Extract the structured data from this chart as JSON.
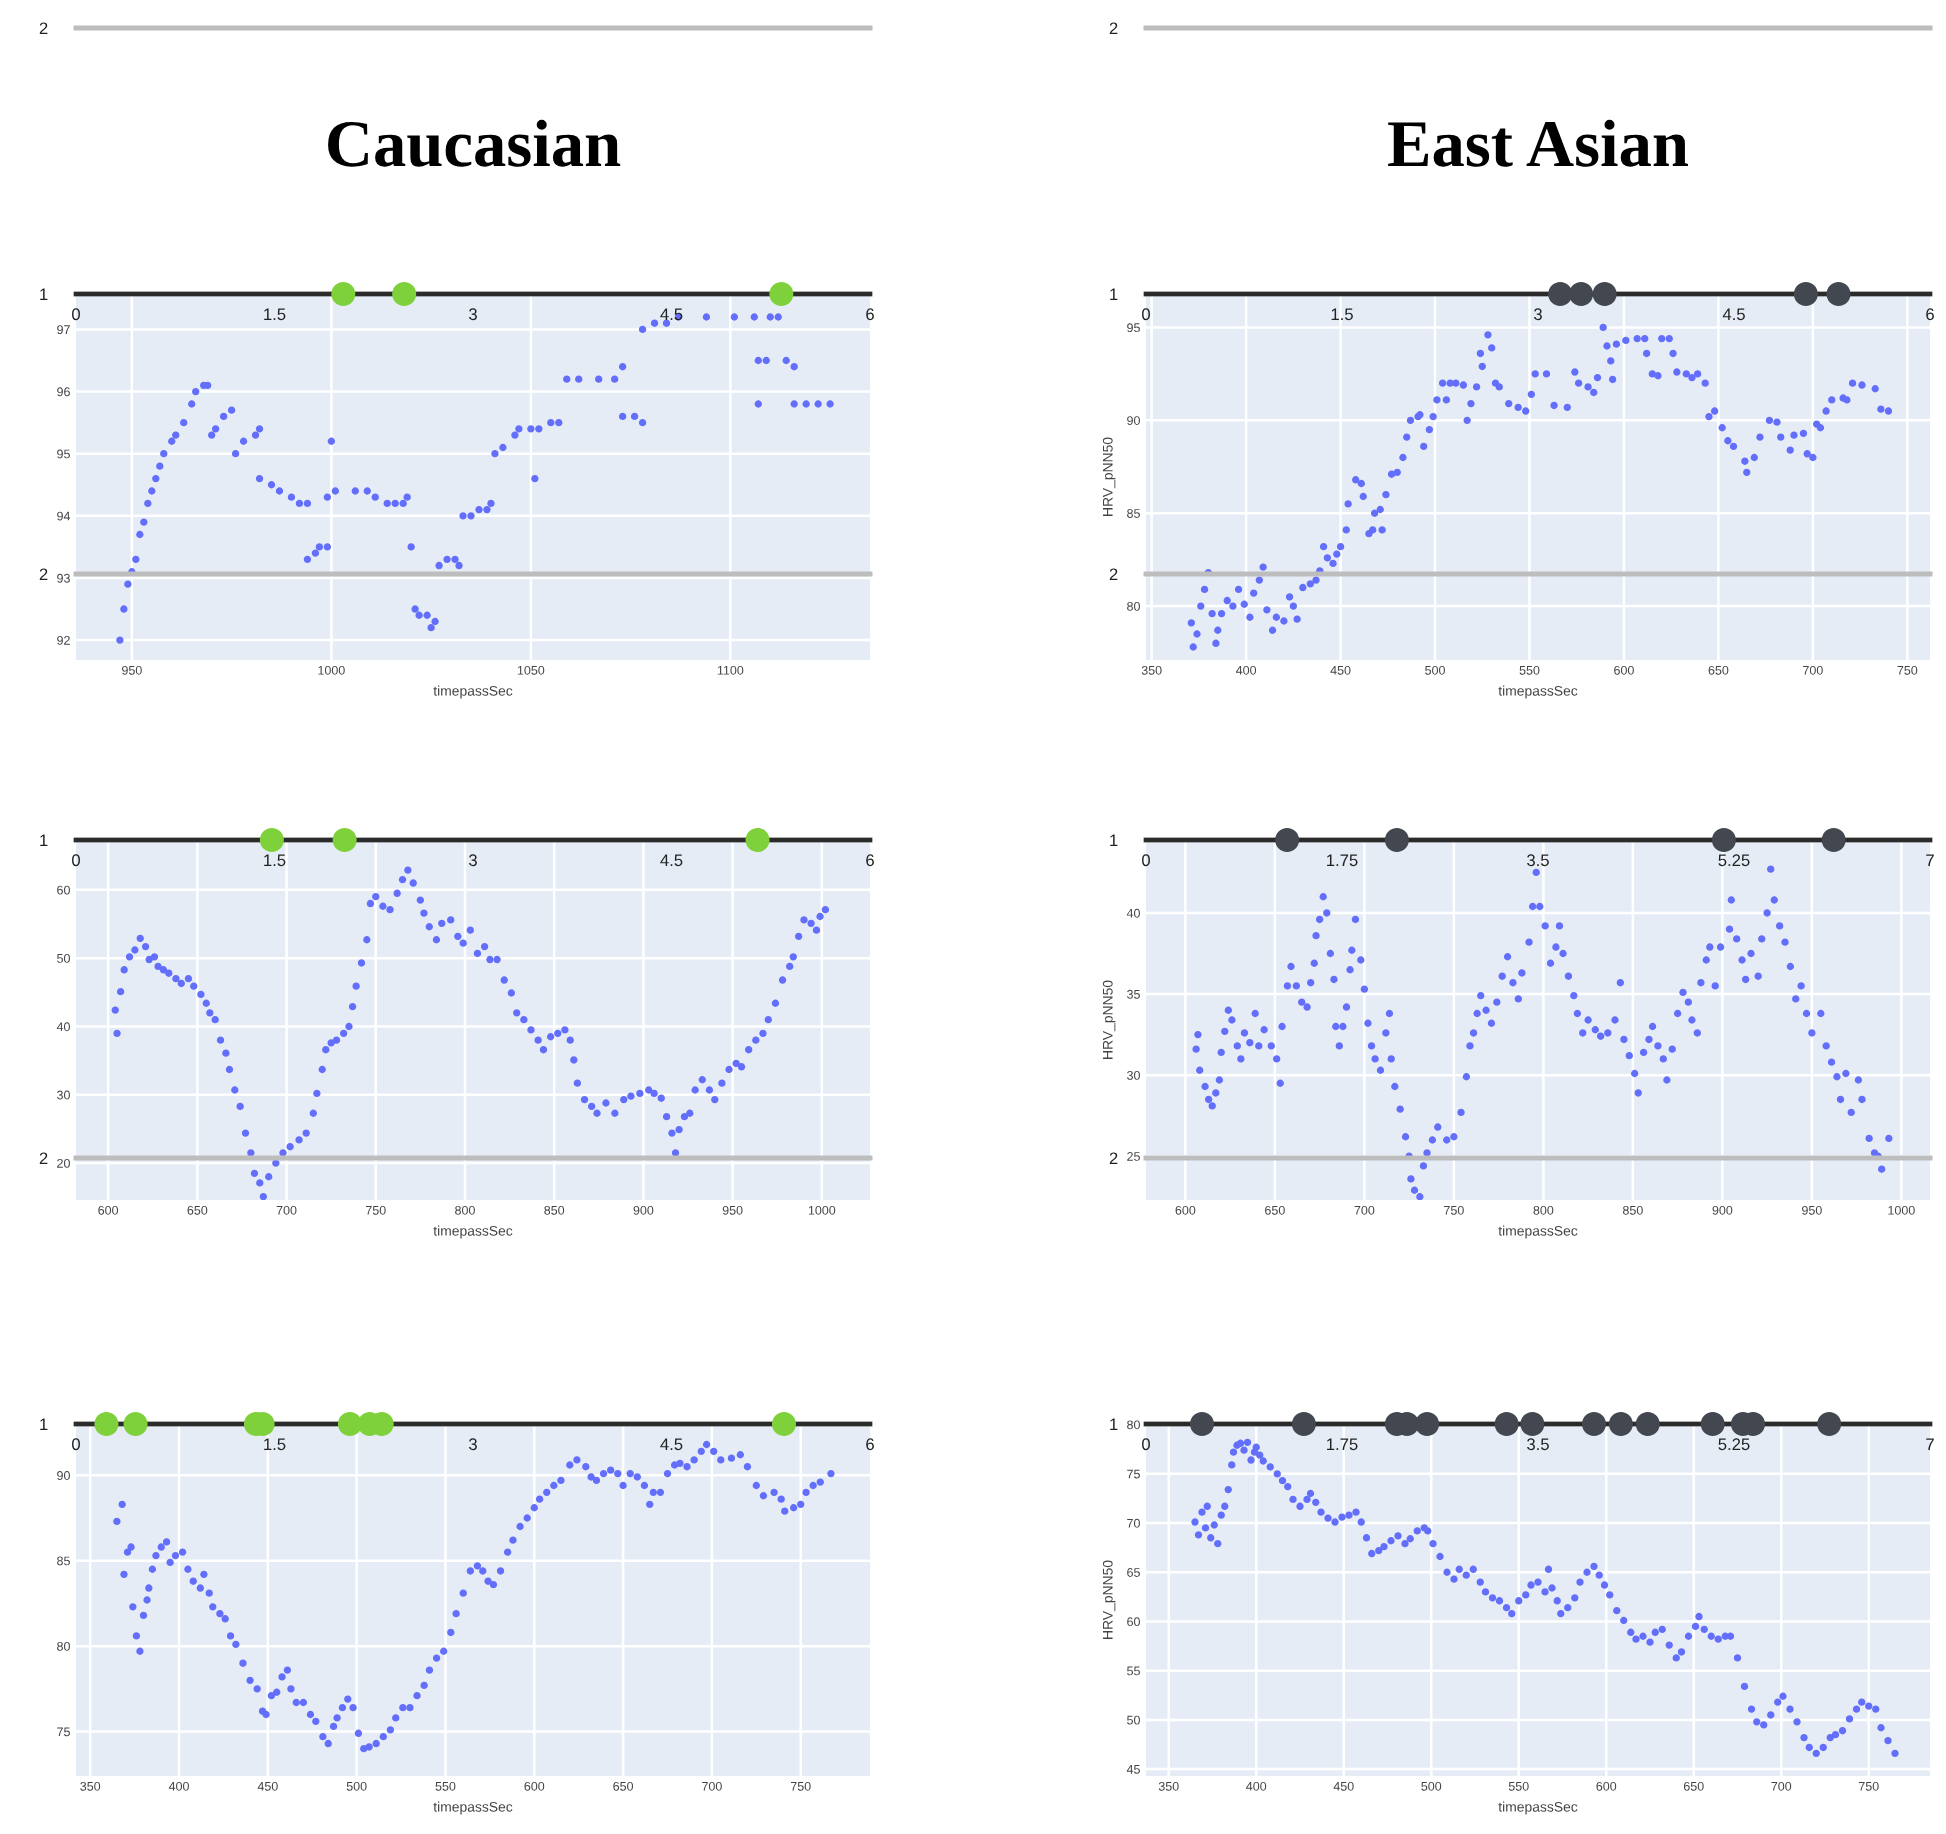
{
  "chart_data": [
    {
      "type": "scatter",
      "title": "Caucasian",
      "marker": "circle",
      "grid": "y",
      "xlim": [
        0,
        6
      ],
      "xticks": [
        0,
        1.5,
        3,
        4.5,
        6
      ],
      "ylim": [
        1,
        2
      ],
      "yticks": [
        1,
        2
      ],
      "series": [
        {
          "color": "#7fd13b",
          "x": [
            2.02,
            2.48,
            5.33
          ],
          "values": [
            1,
            1,
            1
          ]
        }
      ]
    },
    {
      "type": "scatter",
      "title": "East Asian",
      "marker": "circle",
      "grid": "y",
      "xlim": [
        0,
        6
      ],
      "xticks": [
        0,
        1.5,
        3,
        4.5,
        6
      ],
      "ylim": [
        1,
        2
      ],
      "yticks": [
        1,
        2
      ],
      "series": [
        {
          "color": "#43474f",
          "x": [
            3.17,
            3.33,
            3.51,
            5.05,
            5.3
          ],
          "values": [
            1,
            1,
            1,
            1,
            1
          ]
        }
      ]
    },
    {
      "type": "scatter",
      "xlabel": "timepassSec",
      "marker": "circle",
      "grid": true,
      "xlim": [
        936,
        1135
      ],
      "xticks": [
        950,
        1000,
        1050,
        1100
      ],
      "ylim": [
        91.68,
        97.57
      ],
      "yticks": [
        92,
        93,
        94,
        95,
        96,
        97
      ],
      "series": [
        {
          "color": "#636efa",
          "x": [
            947,
            948,
            949,
            950,
            951,
            952,
            953,
            954,
            955,
            956,
            957,
            958,
            960,
            961,
            963,
            965,
            966,
            968,
            969,
            970,
            971,
            973,
            975,
            976,
            978,
            981,
            982,
            982,
            985,
            987,
            990,
            992,
            994,
            994,
            996,
            997,
            999,
            1000,
            999,
            1001,
            1006,
            1009,
            1011,
            1014,
            1016,
            1018,
            1019,
            1020,
            1021,
            1022,
            1024,
            1025,
            1026,
            1027,
            1029,
            1031,
            1032,
            1033,
            1035,
            1037,
            1039,
            1040,
            1041,
            1043,
            1046,
            1047,
            1050,
            1051,
            1052,
            1055,
            1057,
            1059,
            1062,
            1067,
            1071,
            1073,
            1073,
            1076,
            1078,
            1078,
            1081,
            1084,
            1087,
            1094,
            1101,
            1106,
            1107,
            1109,
            1107,
            1110,
            1112,
            1114,
            1116,
            1116,
            1119,
            1122,
            1125
          ],
          "values": [
            92.0,
            92.5,
            92.9,
            93.1,
            93.3,
            93.7,
            93.9,
            94.2,
            94.4,
            94.6,
            94.8,
            95.0,
            95.2,
            95.3,
            95.5,
            95.8,
            96.0,
            96.1,
            96.1,
            95.3,
            95.4,
            95.6,
            95.7,
            95.0,
            95.2,
            95.3,
            95.4,
            94.6,
            94.5,
            94.4,
            94.3,
            94.2,
            94.2,
            93.3,
            93.4,
            93.5,
            93.5,
            95.2,
            94.3,
            94.4,
            94.4,
            94.4,
            94.3,
            94.2,
            94.2,
            94.2,
            94.3,
            93.5,
            92.5,
            92.4,
            92.4,
            92.2,
            92.3,
            93.2,
            93.3,
            93.3,
            93.2,
            94.0,
            94.0,
            94.1,
            94.1,
            94.2,
            95.0,
            95.1,
            95.3,
            95.4,
            95.4,
            94.6,
            95.4,
            95.5,
            95.5,
            96.2,
            96.2,
            96.2,
            96.2,
            96.4,
            95.6,
            95.6,
            95.5,
            97.0,
            97.1,
            97.1,
            97.2,
            97.2,
            97.2,
            97.2,
            96.5,
            96.5,
            95.8,
            97.2,
            97.2,
            96.5,
            96.4,
            95.8,
            95.8,
            95.8,
            95.8
          ]
        }
      ]
    },
    {
      "type": "scatter",
      "xlabel": "timepassSec",
      "ylabel": "HRV_pNN50",
      "marker": "circle",
      "grid": true,
      "xlim": [
        347,
        762
      ],
      "xticks": [
        350,
        400,
        450,
        500,
        550,
        600,
        650,
        700,
        750
      ],
      "ylim": [
        77.1,
        96.8
      ],
      "yticks": [
        80,
        85,
        90,
        95
      ],
      "series": [
        {
          "color": "#636efa",
          "x": [
            371,
            372,
            374,
            376,
            378,
            380,
            382,
            384,
            385,
            387,
            390,
            393,
            396,
            399,
            402,
            404,
            407,
            409,
            411,
            414,
            416,
            420,
            423,
            425,
            427,
            430,
            434,
            437,
            439,
            441,
            443,
            446,
            448,
            450,
            453,
            454,
            458,
            461,
            462,
            465,
            467,
            468,
            471,
            472,
            474,
            477,
            480,
            483,
            485,
            487,
            491,
            492,
            494,
            497,
            499,
            501,
            504,
            506,
            508,
            511,
            515,
            517,
            519,
            522,
            524,
            525,
            528,
            530,
            532,
            534,
            539,
            544,
            548,
            551,
            553,
            559,
            563,
            570,
            574,
            576,
            581,
            584,
            586,
            589,
            591,
            593,
            594,
            596,
            601,
            607,
            611,
            612,
            615,
            618,
            620,
            624,
            626,
            628,
            633,
            636,
            639,
            643,
            645,
            648,
            652,
            655,
            658,
            664,
            665,
            669,
            672,
            677,
            681,
            683,
            688,
            690,
            695,
            697,
            700,
            702,
            704,
            707,
            710,
            716,
            718,
            721,
            726,
            733,
            736,
            740
          ],
          "values": [
            79.1,
            77.8,
            78.5,
            80.0,
            80.9,
            81.8,
            79.6,
            78.0,
            78.7,
            79.6,
            80.3,
            80.0,
            80.9,
            80.1,
            79.4,
            80.7,
            81.4,
            82.1,
            79.8,
            78.7,
            79.4,
            79.2,
            80.5,
            80.0,
            79.3,
            81.0,
            81.2,
            81.4,
            81.9,
            83.2,
            82.6,
            82.3,
            82.8,
            83.2,
            84.1,
            85.5,
            86.8,
            86.6,
            85.9,
            83.9,
            84.1,
            85.0,
            85.2,
            84.1,
            86.0,
            87.1,
            87.2,
            88.0,
            89.1,
            90.0,
            90.2,
            90.3,
            88.6,
            89.5,
            90.2,
            91.1,
            92.0,
            91.1,
            92.0,
            92.0,
            91.9,
            90.0,
            90.9,
            91.8,
            93.6,
            92.9,
            94.6,
            93.9,
            92.0,
            91.8,
            90.9,
            90.7,
            90.5,
            91.4,
            92.5,
            92.5,
            90.8,
            90.7,
            92.6,
            92.0,
            91.8,
            91.5,
            92.3,
            95.0,
            94.0,
            93.2,
            92.2,
            94.1,
            94.3,
            94.4,
            94.4,
            93.6,
            92.5,
            92.4,
            94.4,
            94.4,
            93.6,
            92.6,
            92.5,
            92.3,
            92.5,
            92.0,
            90.2,
            90.5,
            89.6,
            88.9,
            88.6,
            87.8,
            87.2,
            88.0,
            89.1,
            90.0,
            89.9,
            89.1,
            88.4,
            89.2,
            89.3,
            88.2,
            88.0,
            89.8,
            89.6,
            90.5,
            91.1,
            91.2,
            91.1,
            92.0,
            91.9,
            91.7,
            90.6,
            90.5
          ]
        }
      ]
    },
    {
      "type": "scatter",
      "marker": "circle",
      "grid": "y",
      "xlim": [
        0,
        6
      ],
      "xticks": [
        0,
        1.5,
        3,
        4.5,
        6
      ],
      "ylim": [
        1,
        2
      ],
      "yticks": [
        1,
        2
      ],
      "series": [
        {
          "color": "#7fd13b",
          "x": [
            1.48,
            2.03,
            5.15
          ],
          "values": [
            1,
            1,
            1
          ]
        }
      ]
    },
    {
      "type": "scatter",
      "marker": "circle",
      "grid": "y",
      "xlim": [
        0,
        7
      ],
      "xticks": [
        0,
        1.75,
        3.5,
        5.25,
        7
      ],
      "ylim": [
        1,
        2
      ],
      "yticks": [
        1,
        2
      ],
      "series": [
        {
          "color": "#43474f",
          "x": [
            1.26,
            2.24,
            5.16,
            6.14
          ],
          "values": [
            1,
            1,
            1,
            1
          ]
        }
      ]
    },
    {
      "type": "scatter",
      "xlabel": "timepassSec",
      "marker": "circle",
      "grid": true,
      "xlim": [
        582,
        1027
      ],
      "xticks": [
        600,
        650,
        700,
        750,
        800,
        850,
        900,
        950,
        1000
      ],
      "ylim": [
        14.6,
        67.3
      ],
      "yticks": [
        20,
        30,
        40,
        50,
        60
      ],
      "series": [
        {
          "color": "#636efa",
          "x": [
            604,
            605,
            607,
            609,
            612,
            615,
            618,
            621,
            623,
            626,
            628,
            631,
            634,
            638,
            641,
            645,
            648,
            652,
            655,
            657,
            660,
            663,
            666,
            668,
            671,
            674,
            677,
            680,
            682,
            685,
            687,
            690,
            694,
            698,
            702,
            707,
            711,
            715,
            717,
            720,
            722,
            725,
            728,
            732,
            735,
            737,
            739,
            742,
            745,
            747,
            750,
            754,
            758,
            762,
            765,
            768,
            771,
            775,
            777,
            780,
            784,
            787,
            792,
            796,
            799,
            803,
            807,
            811,
            814,
            818,
            822,
            826,
            829,
            833,
            837,
            841,
            844,
            848,
            852,
            856,
            859,
            861,
            863,
            867,
            871,
            874,
            879,
            884,
            889,
            893,
            898,
            903,
            906,
            910,
            913,
            916,
            918,
            920,
            923,
            926,
            929,
            933,
            937,
            940,
            944,
            948,
            952,
            955,
            959,
            963,
            967,
            970,
            974,
            978,
            982,
            984,
            987,
            990,
            994,
            997,
            999,
            1002
          ],
          "values": [
            42.4,
            39.0,
            45.1,
            48.3,
            50.2,
            51.2,
            52.9,
            51.7,
            49.8,
            50.2,
            48.8,
            48.3,
            47.8,
            47.0,
            46.3,
            47.0,
            45.9,
            44.7,
            43.4,
            42.0,
            41.0,
            38.0,
            36.1,
            33.7,
            30.7,
            28.3,
            24.4,
            21.5,
            18.5,
            17.1,
            15.1,
            18.0,
            20.0,
            21.5,
            22.4,
            23.4,
            24.4,
            27.3,
            30.2,
            33.7,
            36.6,
            37.6,
            38.0,
            39.0,
            40.0,
            42.9,
            45.9,
            49.3,
            52.7,
            58.0,
            59.0,
            57.6,
            57.1,
            59.5,
            61.5,
            62.9,
            61.0,
            58.5,
            56.6,
            54.6,
            52.7,
            55.1,
            55.6,
            53.2,
            52.2,
            54.1,
            50.7,
            51.7,
            49.8,
            49.8,
            46.8,
            44.9,
            42.0,
            41.0,
            39.5,
            38.0,
            36.6,
            38.5,
            39.0,
            39.5,
            38.0,
            35.1,
            31.7,
            29.3,
            28.3,
            27.3,
            28.8,
            27.3,
            29.3,
            29.8,
            30.2,
            30.7,
            30.2,
            29.5,
            26.8,
            24.4,
            21.5,
            24.9,
            26.8,
            27.3,
            30.7,
            32.2,
            30.7,
            29.3,
            31.7,
            33.7,
            34.6,
            34.1,
            36.6,
            38.0,
            39.0,
            41.0,
            43.4,
            46.8,
            48.8,
            50.2,
            53.2,
            55.6,
            55.1,
            54.1,
            56.1,
            57.1
          ]
        }
      ]
    },
    {
      "type": "scatter",
      "xlabel": "timepassSec",
      "ylabel": "HRV_pNN50",
      "marker": "circle",
      "grid": true,
      "xlim": [
        578,
        1016
      ],
      "xticks": [
        600,
        650,
        700,
        750,
        800,
        850,
        900,
        950,
        1000
      ],
      "ylim": [
        22.3,
        44.5
      ],
      "yticks": [
        25,
        30,
        35,
        40
      ],
      "series": [
        {
          "color": "#636efa",
          "x": [
            606,
            607,
            608,
            611,
            613,
            615,
            617,
            619,
            620,
            622,
            624,
            626,
            629,
            631,
            633,
            636,
            639,
            641,
            644,
            648,
            651,
            653,
            654,
            657,
            659,
            662,
            665,
            668,
            670,
            672,
            673,
            675,
            677,
            679,
            681,
            683,
            684,
            686,
            688,
            690,
            692,
            693,
            695,
            698,
            700,
            702,
            704,
            706,
            709,
            712,
            714,
            715,
            717,
            720,
            723,
            725,
            726,
            728,
            731,
            733,
            735,
            738,
            741,
            746,
            750,
            754,
            757,
            759,
            761,
            763,
            765,
            768,
            771,
            774,
            777,
            780,
            783,
            786,
            788,
            792,
            794,
            796,
            798,
            801,
            804,
            807,
            809,
            811,
            814,
            817,
            819,
            822,
            825,
            829,
            832,
            836,
            840,
            843,
            845,
            848,
            851,
            853,
            856,
            859,
            861,
            864,
            867,
            869,
            872,
            875,
            878,
            881,
            883,
            886,
            888,
            891,
            893,
            896,
            899,
            904,
            905,
            908,
            911,
            913,
            916,
            920,
            922,
            925,
            927,
            929,
            932,
            935,
            938,
            941,
            944,
            947,
            950,
            955,
            958,
            961,
            964,
            966,
            969,
            972,
            976,
            978,
            982,
            985,
            987,
            989,
            993
          ],
          "values": [
            31.6,
            32.5,
            30.3,
            29.3,
            28.5,
            28.1,
            28.9,
            29.7,
            31.4,
            32.7,
            34.0,
            33.4,
            31.8,
            31.0,
            32.6,
            32.0,
            33.8,
            31.8,
            32.8,
            31.8,
            31.0,
            29.5,
            33.0,
            35.5,
            36.7,
            35.5,
            34.5,
            34.2,
            35.7,
            36.9,
            38.6,
            39.6,
            41.0,
            40.0,
            37.5,
            35.9,
            33.0,
            31.8,
            33.0,
            34.2,
            36.5,
            37.7,
            39.6,
            37.1,
            35.3,
            33.2,
            31.8,
            31.0,
            30.3,
            32.6,
            33.8,
            31.0,
            29.3,
            27.9,
            26.2,
            25.0,
            23.6,
            22.9,
            22.5,
            24.4,
            25.2,
            26.0,
            26.8,
            26.0,
            26.2,
            27.7,
            29.9,
            31.8,
            32.6,
            33.8,
            34.9,
            34.0,
            33.2,
            34.5,
            36.1,
            37.3,
            35.7,
            34.7,
            36.3,
            38.2,
            40.4,
            42.5,
            40.4,
            39.2,
            36.9,
            37.9,
            39.2,
            37.5,
            36.1,
            34.9,
            33.8,
            32.6,
            33.4,
            32.8,
            32.4,
            32.6,
            33.4,
            35.7,
            32.2,
            31.2,
            30.1,
            28.9,
            31.4,
            32.2,
            33.0,
            31.8,
            31.0,
            29.7,
            31.6,
            33.8,
            35.1,
            34.5,
            33.4,
            32.6,
            35.7,
            37.1,
            37.9,
            35.5,
            37.9,
            39.0,
            40.8,
            38.4,
            37.1,
            35.9,
            37.5,
            36.1,
            38.4,
            40.0,
            42.7,
            40.8,
            39.2,
            38.2,
            36.7,
            34.7,
            35.5,
            33.8,
            32.6,
            33.8,
            31.8,
            30.8,
            29.9,
            28.5,
            30.1,
            27.7,
            29.7,
            28.5,
            26.1,
            25.2,
            25.0,
            24.2,
            26.1
          ]
        }
      ]
    },
    {
      "type": "scatter",
      "marker": "circle",
      "grid": "y",
      "xlim": [
        0,
        6
      ],
      "xticks": [
        0,
        1.5,
        3,
        4.5,
        6
      ],
      "ylim": [
        1,
        2
      ],
      "yticks": [
        1,
        2
      ],
      "series": [
        {
          "color": "#7fd13b",
          "x": [
            0.23,
            0.45,
            1.36,
            1.41,
            2.07,
            2.22,
            2.31,
            5.35
          ],
          "values": [
            1,
            1,
            1,
            1,
            1,
            1,
            1,
            1
          ]
        }
      ]
    },
    {
      "type": "scatter",
      "marker": "circle",
      "grid": "y",
      "xlim": [
        0,
        7
      ],
      "xticks": [
        0,
        1.75,
        3.5,
        5.25,
        7
      ],
      "ylim": [
        1,
        2
      ],
      "yticks": [
        1,
        2
      ],
      "series": [
        {
          "color": "#43474f",
          "x": [
            0.5,
            1.41,
            2.24,
            2.33,
            2.51,
            3.22,
            3.45,
            4.0,
            4.24,
            4.48,
            5.06,
            5.33,
            5.42,
            6.1
          ],
          "values": [
            1,
            1,
            1,
            1,
            1,
            1,
            1,
            1,
            1,
            1,
            1,
            1,
            1,
            1
          ]
        }
      ]
    },
    {
      "type": "scatter",
      "xlabel": "timepassSec",
      "marker": "circle",
      "grid": true,
      "xlim": [
        342,
        789
      ],
      "xticks": [
        350,
        400,
        450,
        500,
        550,
        600,
        650,
        700,
        750
      ],
      "ylim": [
        72.4,
        93.0
      ],
      "yticks": [
        75,
        80,
        85,
        90
      ],
      "series": [
        {
          "color": "#636efa",
          "x": [
            365,
            368,
            369,
            371,
            373,
            374,
            376,
            378,
            380,
            382,
            383,
            385,
            387,
            390,
            393,
            395,
            398,
            402,
            405,
            408,
            412,
            414,
            417,
            419,
            423,
            426,
            429,
            432,
            436,
            440,
            444,
            447,
            449,
            452,
            455,
            458,
            461,
            463,
            466,
            470,
            474,
            477,
            481,
            484,
            487,
            489,
            492,
            495,
            498,
            501,
            504,
            507,
            511,
            515,
            519,
            522,
            526,
            530,
            534,
            538,
            541,
            545,
            549,
            553,
            556,
            560,
            564,
            568,
            571,
            574,
            577,
            581,
            585,
            588,
            592,
            596,
            600,
            603,
            607,
            611,
            615,
            620,
            624,
            629,
            632,
            635,
            639,
            643,
            647,
            650,
            654,
            658,
            662,
            665,
            667,
            671,
            675,
            679,
            682,
            686,
            690,
            694,
            697,
            701,
            705,
            711,
            716,
            720,
            725,
            729,
            735,
            739,
            741,
            746,
            750,
            753,
            757,
            761,
            767
          ],
          "values": [
            87.3,
            88.3,
            84.2,
            85.5,
            85.8,
            82.3,
            80.6,
            79.7,
            81.8,
            82.7,
            83.4,
            84.5,
            85.3,
            85.8,
            86.1,
            84.9,
            85.3,
            85.5,
            84.5,
            83.8,
            83.4,
            84.2,
            83.1,
            82.3,
            81.9,
            81.6,
            80.6,
            80.1,
            79.0,
            78.0,
            77.5,
            76.2,
            76.0,
            77.1,
            77.3,
            78.2,
            78.6,
            77.5,
            76.7,
            76.7,
            76.0,
            75.6,
            74.7,
            74.3,
            75.3,
            75.8,
            76.4,
            76.9,
            76.4,
            74.9,
            74.0,
            74.1,
            74.3,
            74.7,
            75.1,
            75.8,
            76.4,
            76.4,
            77.1,
            77.7,
            78.6,
            79.3,
            79.7,
            80.8,
            81.9,
            83.1,
            84.4,
            84.7,
            84.4,
            83.8,
            83.6,
            84.4,
            85.5,
            86.2,
            87.0,
            87.5,
            88.1,
            88.6,
            89.0,
            89.4,
            89.7,
            90.6,
            90.9,
            90.5,
            89.9,
            89.7,
            90.1,
            90.3,
            90.1,
            89.4,
            90.1,
            89.9,
            89.4,
            88.3,
            89.0,
            89.0,
            90.1,
            90.6,
            90.7,
            90.5,
            90.9,
            91.4,
            91.8,
            91.4,
            90.9,
            91.0,
            91.2,
            90.5,
            89.4,
            88.8,
            89.0,
            88.6,
            87.9,
            88.1,
            88.3,
            89.0,
            89.4,
            89.6,
            90.1
          ]
        }
      ]
    },
    {
      "type": "scatter",
      "xlabel": "timepassSec",
      "ylabel": "HRV_pNN50",
      "marker": "circle",
      "grid": true,
      "xlim": [
        337,
        785
      ],
      "xticks": [
        350,
        400,
        450,
        500,
        550,
        600,
        650,
        700,
        750
      ],
      "ylim": [
        44.3,
        80.06
      ],
      "yticks": [
        45,
        50,
        55,
        60,
        65,
        70,
        75,
        80
      ],
      "series": [
        {
          "color": "#636efa",
          "x": [
            365,
            367,
            369,
            371,
            372,
            374,
            376,
            378,
            380,
            382,
            384,
            386,
            387,
            389,
            391,
            393,
            395,
            397,
            399,
            400,
            402,
            404,
            408,
            412,
            415,
            418,
            421,
            425,
            429,
            431,
            434,
            437,
            441,
            445,
            449,
            453,
            457,
            460,
            463,
            466,
            470,
            473,
            477,
            481,
            485,
            488,
            492,
            496,
            498,
            501,
            505,
            509,
            513,
            516,
            520,
            524,
            528,
            531,
            535,
            539,
            543,
            546,
            550,
            554,
            557,
            561,
            565,
            567,
            569,
            572,
            574,
            578,
            582,
            585,
            589,
            593,
            596,
            599,
            602,
            606,
            610,
            614,
            617,
            621,
            625,
            628,
            632,
            636,
            640,
            643,
            647,
            651,
            653,
            656,
            660,
            664,
            668,
            671,
            675,
            679,
            683,
            686,
            690,
            694,
            698,
            701,
            705,
            709,
            713,
            716,
            720,
            724,
            728,
            731,
            735,
            739,
            743,
            746,
            750,
            754,
            757,
            761,
            765
          ],
          "values": [
            70.1,
            68.8,
            71.1,
            69.5,
            71.7,
            68.5,
            69.8,
            67.9,
            70.8,
            71.7,
            73.4,
            75.9,
            77.2,
            77.9,
            78.1,
            77.4,
            78.2,
            76.4,
            77.2,
            77.7,
            76.9,
            76.3,
            75.7,
            75.0,
            74.3,
            73.7,
            72.4,
            71.7,
            72.4,
            73.0,
            72.1,
            71.1,
            70.5,
            70.1,
            70.6,
            70.8,
            71.1,
            70.1,
            68.5,
            66.9,
            67.2,
            67.6,
            68.2,
            68.7,
            67.9,
            68.4,
            69.2,
            69.5,
            69.2,
            67.9,
            66.6,
            65.0,
            64.3,
            65.3,
            64.7,
            65.3,
            64.0,
            63.0,
            62.4,
            62.1,
            61.4,
            60.8,
            62.1,
            62.7,
            63.7,
            64.0,
            63.0,
            65.3,
            63.4,
            62.1,
            60.8,
            61.4,
            62.4,
            64.0,
            65.0,
            65.6,
            64.7,
            63.7,
            62.7,
            61.1,
            60.1,
            58.9,
            58.2,
            58.5,
            57.9,
            58.9,
            59.2,
            57.6,
            56.3,
            56.9,
            58.5,
            59.5,
            60.5,
            59.2,
            58.5,
            58.2,
            58.5,
            58.5,
            56.3,
            53.4,
            51.1,
            49.8,
            49.5,
            50.5,
            51.8,
            52.4,
            51.1,
            49.8,
            48.2,
            47.2,
            46.6,
            47.2,
            48.2,
            48.5,
            48.9,
            50.1,
            51.1,
            51.8,
            51.4,
            51.1,
            49.2,
            47.9,
            46.6
          ]
        }
      ]
    }
  ]
}
